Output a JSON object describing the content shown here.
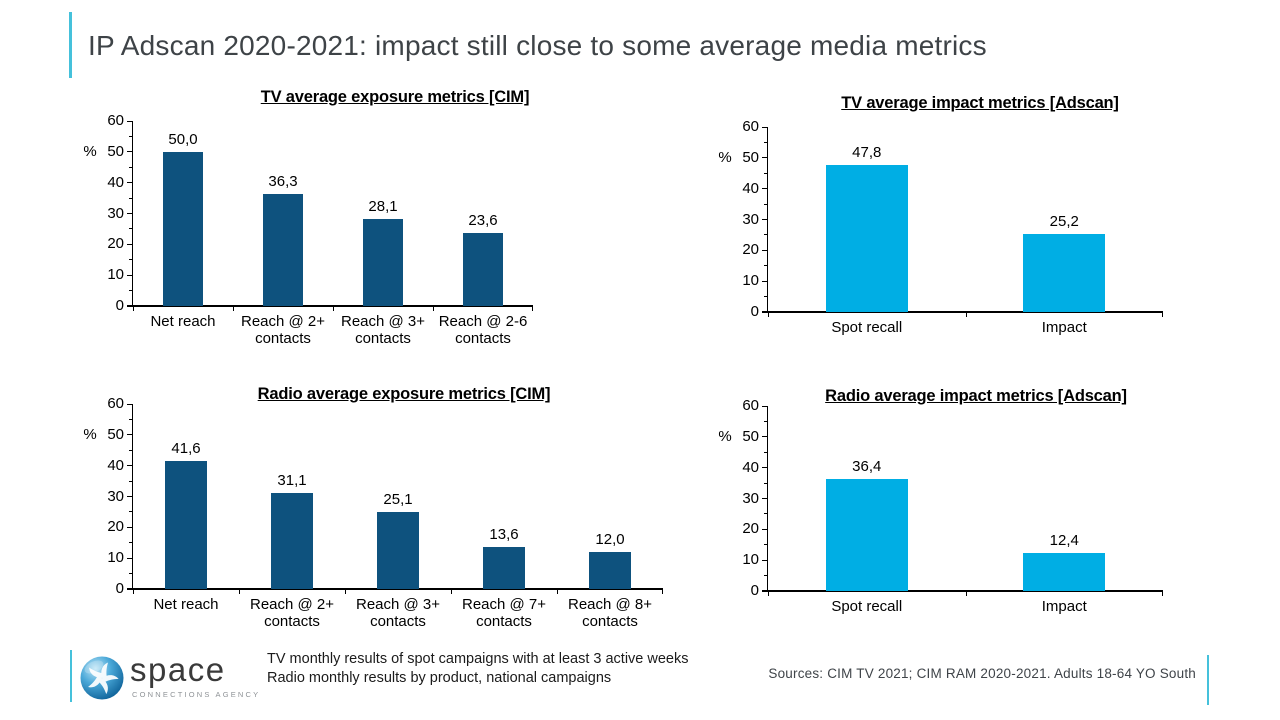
{
  "slide_title": "IP Adscan 2020-2021: impact still close to some average media metrics",
  "accent_color": "#45C1DB",
  "chart_data": [
    {
      "id": "tv-exposure",
      "type": "bar",
      "title": "TV average exposure metrics [CIM]",
      "ylabel": "%",
      "ylim": [
        0,
        60
      ],
      "ytick_step": 10,
      "grid": false,
      "bar_color": "#0E527E",
      "categories": [
        "Net reach",
        "Reach @ 2+\ncontacts",
        "Reach @ 3+\ncontacts",
        "Reach @ 2-6\ncontacts"
      ],
      "values": [
        50.0,
        36.3,
        28.1,
        23.6
      ],
      "value_labels": [
        "50,0",
        "36,3",
        "28,1",
        "23,6"
      ]
    },
    {
      "id": "tv-impact",
      "type": "bar",
      "title": "TV average impact metrics [Adscan]",
      "ylabel": "%",
      "ylim": [
        0,
        60
      ],
      "ytick_step": 10,
      "grid": false,
      "bar_color": "#00AEE4",
      "categories": [
        "Spot recall",
        "Impact"
      ],
      "values": [
        47.8,
        25.2
      ],
      "value_labels": [
        "47,8",
        "25,2"
      ]
    },
    {
      "id": "radio-exposure",
      "type": "bar",
      "title": "Radio average exposure metrics [CIM]",
      "ylabel": "%",
      "ylim": [
        0,
        60
      ],
      "ytick_step": 10,
      "grid": false,
      "bar_color": "#0E527E",
      "categories": [
        "Net reach",
        "Reach @ 2+\ncontacts",
        "Reach @ 3+\ncontacts",
        "Reach @ 7+\ncontacts",
        "Reach @ 8+\ncontacts"
      ],
      "values": [
        41.6,
        31.1,
        25.1,
        13.6,
        12.0
      ],
      "value_labels": [
        "41,6",
        "31,1",
        "25,1",
        "13,6",
        "12,0"
      ]
    },
    {
      "id": "radio-impact",
      "type": "bar",
      "title": "Radio average impact metrics [Adscan]",
      "ylabel": "%",
      "ylim": [
        0,
        60
      ],
      "ytick_step": 10,
      "grid": false,
      "bar_color": "#00AEE4",
      "categories": [
        "Spot recall",
        "Impact"
      ],
      "values": [
        36.4,
        12.4
      ],
      "value_labels": [
        "36,4",
        "12,4"
      ]
    }
  ],
  "footer": {
    "logo": {
      "name": "space",
      "tagline": "CONNECTIONS AGENCY"
    },
    "notes": [
      "TV monthly results of spot campaigns with at least 3 active weeks",
      "Radio monthly results by product, national campaigns"
    ],
    "sources": "Sources: CIM TV 2021; CIM RAM 2020-2021. Adults 18-64 YO South"
  }
}
